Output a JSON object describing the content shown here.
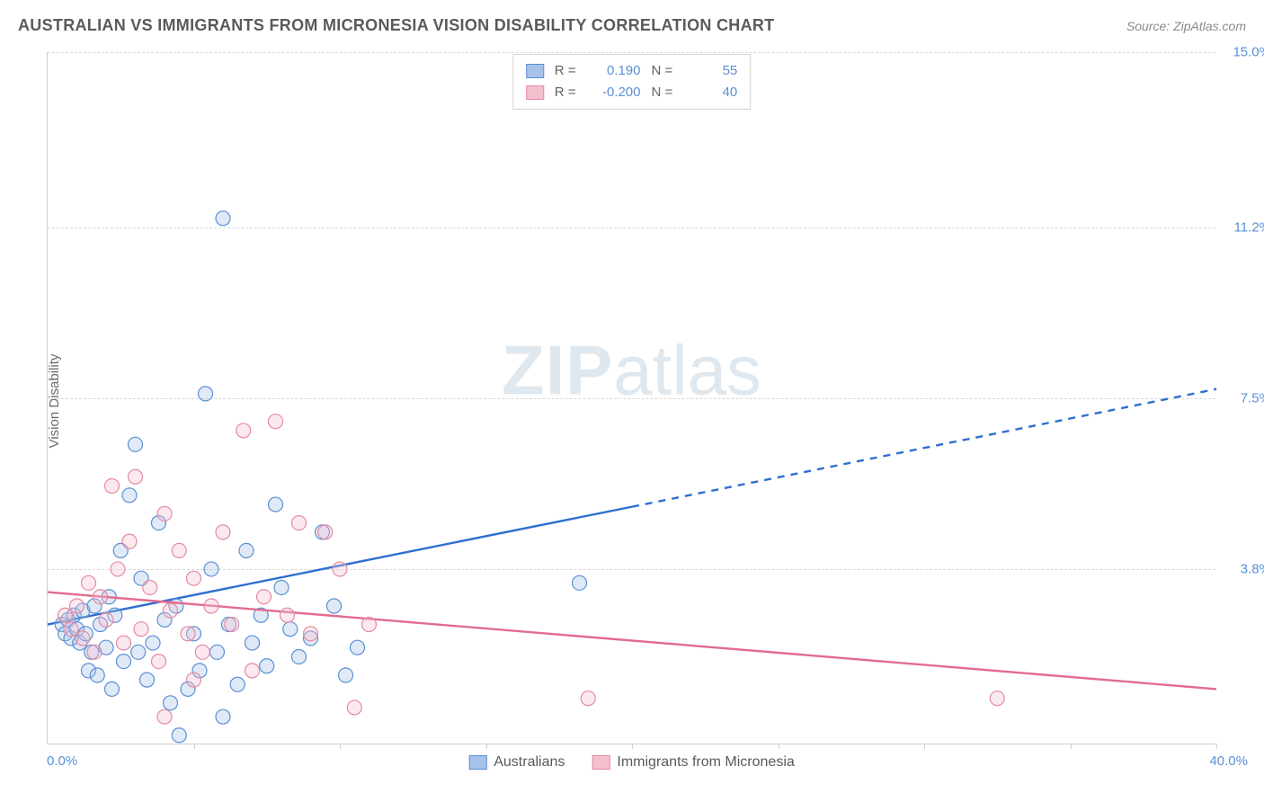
{
  "header": {
    "title": "AUSTRALIAN VS IMMIGRANTS FROM MICRONESIA VISION DISABILITY CORRELATION CHART",
    "source": "Source: ZipAtlas.com"
  },
  "chart": {
    "type": "scatter",
    "ylabel": "Vision Disability",
    "xlim": [
      0,
      40
    ],
    "ylim": [
      0,
      15
    ],
    "x_tick_min_label": "0.0%",
    "x_tick_max_label": "40.0%",
    "y_ticks": [
      {
        "value": 3.8,
        "label": "3.8%"
      },
      {
        "value": 7.5,
        "label": "7.5%"
      },
      {
        "value": 11.2,
        "label": "11.2%"
      },
      {
        "value": 15.0,
        "label": "15.0%"
      }
    ],
    "x_tickmarks": [
      5,
      10,
      15,
      20,
      25,
      30,
      35,
      40
    ],
    "background_color": "#ffffff",
    "grid_color": "#d8d8d8",
    "axis_color": "#cfcfcf",
    "tick_label_color": "#5b8fd6",
    "marker_radius": 8,
    "marker_stroke_width": 1.2,
    "marker_fill_opacity": 0.35,
    "line_width": 2.4,
    "series": [
      {
        "id": "aus",
        "name": "Australians",
        "fill_color": "#a7c3e8",
        "stroke_color": "#5b8fd6",
        "line_color": "#2f6fd0",
        "R": "0.190",
        "N": "55",
        "trend": {
          "x1": 0,
          "y1": 2.6,
          "x2": 40,
          "y2": 7.7,
          "solid_until_x": 20
        },
        "points": [
          [
            0.5,
            2.6
          ],
          [
            0.6,
            2.4
          ],
          [
            0.7,
            2.7
          ],
          [
            0.8,
            2.3
          ],
          [
            0.9,
            2.8
          ],
          [
            1.0,
            2.5
          ],
          [
            1.1,
            2.2
          ],
          [
            1.2,
            2.9
          ],
          [
            1.3,
            2.4
          ],
          [
            1.4,
            1.6
          ],
          [
            1.5,
            2.0
          ],
          [
            1.6,
            3.0
          ],
          [
            1.7,
            1.5
          ],
          [
            1.8,
            2.6
          ],
          [
            2.0,
            2.1
          ],
          [
            2.1,
            3.2
          ],
          [
            2.2,
            1.2
          ],
          [
            2.3,
            2.8
          ],
          [
            2.5,
            4.2
          ],
          [
            2.6,
            1.8
          ],
          [
            2.8,
            5.4
          ],
          [
            3.0,
            6.5
          ],
          [
            3.1,
            2.0
          ],
          [
            3.2,
            3.6
          ],
          [
            3.4,
            1.4
          ],
          [
            3.6,
            2.2
          ],
          [
            3.8,
            4.8
          ],
          [
            4.0,
            2.7
          ],
          [
            4.2,
            0.9
          ],
          [
            4.4,
            3.0
          ],
          [
            4.5,
            0.2
          ],
          [
            4.8,
            1.2
          ],
          [
            5.0,
            2.4
          ],
          [
            5.2,
            1.6
          ],
          [
            5.4,
            7.6
          ],
          [
            5.6,
            3.8
          ],
          [
            5.8,
            2.0
          ],
          [
            6.0,
            11.4
          ],
          [
            6.2,
            2.6
          ],
          [
            6.5,
            1.3
          ],
          [
            6.8,
            4.2
          ],
          [
            7.0,
            2.2
          ],
          [
            7.3,
            2.8
          ],
          [
            7.5,
            1.7
          ],
          [
            7.8,
            5.2
          ],
          [
            8.0,
            3.4
          ],
          [
            8.3,
            2.5
          ],
          [
            8.6,
            1.9
          ],
          [
            9.0,
            2.3
          ],
          [
            9.4,
            4.6
          ],
          [
            9.8,
            3.0
          ],
          [
            10.2,
            1.5
          ],
          [
            10.6,
            2.1
          ],
          [
            18.2,
            3.5
          ],
          [
            6.0,
            0.6
          ]
        ]
      },
      {
        "id": "mic",
        "name": "Immigrants from Micronesia",
        "fill_color": "#f4c0cd",
        "stroke_color": "#e48aa3",
        "line_color": "#e26b8e",
        "R": "-0.200",
        "N": "40",
        "trend": {
          "x1": 0,
          "y1": 3.3,
          "x2": 40,
          "y2": 1.2,
          "solid_until_x": 40
        },
        "points": [
          [
            0.6,
            2.8
          ],
          [
            0.8,
            2.5
          ],
          [
            1.0,
            3.0
          ],
          [
            1.2,
            2.3
          ],
          [
            1.4,
            3.5
          ],
          [
            1.6,
            2.0
          ],
          [
            1.8,
            3.2
          ],
          [
            2.0,
            2.7
          ],
          [
            2.2,
            5.6
          ],
          [
            2.4,
            3.8
          ],
          [
            2.6,
            2.2
          ],
          [
            2.8,
            4.4
          ],
          [
            3.0,
            5.8
          ],
          [
            3.2,
            2.5
          ],
          [
            3.5,
            3.4
          ],
          [
            3.8,
            1.8
          ],
          [
            4.0,
            5.0
          ],
          [
            4.2,
            2.9
          ],
          [
            4.5,
            4.2
          ],
          [
            4.8,
            2.4
          ],
          [
            5.0,
            3.6
          ],
          [
            5.3,
            2.0
          ],
          [
            5.6,
            3.0
          ],
          [
            6.0,
            4.6
          ],
          [
            6.3,
            2.6
          ],
          [
            6.7,
            6.8
          ],
          [
            7.0,
            1.6
          ],
          [
            7.4,
            3.2
          ],
          [
            7.8,
            7.0
          ],
          [
            8.2,
            2.8
          ],
          [
            8.6,
            4.8
          ],
          [
            9.0,
            2.4
          ],
          [
            9.5,
            4.6
          ],
          [
            10.0,
            3.8
          ],
          [
            10.5,
            0.8
          ],
          [
            11.0,
            2.6
          ],
          [
            18.5,
            1.0
          ],
          [
            32.5,
            1.0
          ],
          [
            5.0,
            1.4
          ],
          [
            4.0,
            0.6
          ]
        ]
      }
    ],
    "legend_top": {
      "r_label": "R =",
      "n_label": "N ="
    },
    "watermark": {
      "zip": "ZIP",
      "atlas": "atlas",
      "color": "#dfe7ef"
    }
  }
}
